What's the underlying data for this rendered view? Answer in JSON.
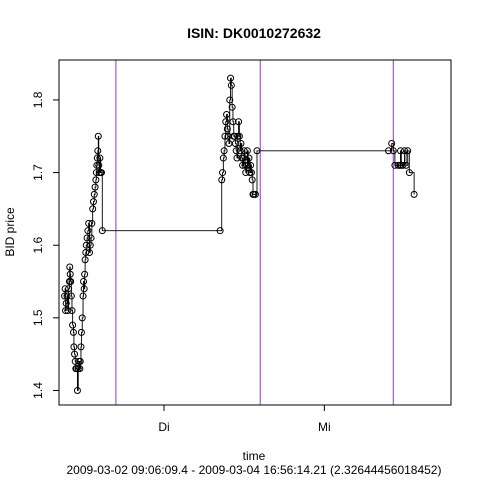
{
  "chart_data": {
    "type": "scatter",
    "title": "ISIN: DK0010272632",
    "xlabel": "time",
    "subtitle": "2009-03-02 09:06:09.4 - 2009-03-04 16:56:14.21 (2.32644456018452)",
    "ylabel": "BID price",
    "x_unit": "days since 2009-03-02 00:00",
    "xlim": [
      0.345,
      2.79
    ],
    "ylim": [
      1.38,
      1.855
    ],
    "x_ticks": [
      {
        "value": 1.0,
        "label": "Di"
      },
      {
        "value": 2.0,
        "label": "Mi"
      }
    ],
    "y_ticks": [
      {
        "value": 1.4,
        "label": "1.4"
      },
      {
        "value": 1.5,
        "label": "1.5"
      },
      {
        "value": 1.6,
        "label": "1.6"
      },
      {
        "value": 1.7,
        "label": "1.7"
      },
      {
        "value": 1.8,
        "label": "1.8"
      }
    ],
    "vertical_lines": [
      {
        "x": 0.7,
        "color": "#9932CC"
      },
      {
        "x": 1.6,
        "color": "#9932CC"
      },
      {
        "x": 2.43,
        "color": "#9932CC"
      }
    ],
    "line_style": "step",
    "grid": false,
    "series": [
      {
        "marker": "open-circle",
        "color": "#000000",
        "points": [
          [
            0.38,
            1.53
          ],
          [
            0.383,
            1.54
          ],
          [
            0.386,
            1.51
          ],
          [
            0.39,
            1.52
          ],
          [
            0.395,
            1.53
          ],
          [
            0.4,
            1.51
          ],
          [
            0.405,
            1.54
          ],
          [
            0.41,
            1.55
          ],
          [
            0.412,
            1.57
          ],
          [
            0.415,
            1.56
          ],
          [
            0.418,
            1.55
          ],
          [
            0.422,
            1.53
          ],
          [
            0.426,
            1.51
          ],
          [
            0.43,
            1.49
          ],
          [
            0.435,
            1.48
          ],
          [
            0.438,
            1.46
          ],
          [
            0.442,
            1.45
          ],
          [
            0.446,
            1.44
          ],
          [
            0.45,
            1.43
          ],
          [
            0.455,
            1.43
          ],
          [
            0.46,
            1.4
          ],
          [
            0.465,
            1.43
          ],
          [
            0.47,
            1.44
          ],
          [
            0.475,
            1.43
          ],
          [
            0.478,
            1.44
          ],
          [
            0.482,
            1.46
          ],
          [
            0.485,
            1.48
          ],
          [
            0.49,
            1.5
          ],
          [
            0.495,
            1.53
          ],
          [
            0.498,
            1.55
          ],
          [
            0.502,
            1.54
          ],
          [
            0.505,
            1.56
          ],
          [
            0.508,
            1.58
          ],
          [
            0.512,
            1.59
          ],
          [
            0.515,
            1.6
          ],
          [
            0.52,
            1.61
          ],
          [
            0.525,
            1.62
          ],
          [
            0.53,
            1.63
          ],
          [
            0.535,
            1.59
          ],
          [
            0.54,
            1.6
          ],
          [
            0.545,
            1.61
          ],
          [
            0.55,
            1.63
          ],
          [
            0.555,
            1.65
          ],
          [
            0.56,
            1.66
          ],
          [
            0.565,
            1.67
          ],
          [
            0.57,
            1.68
          ],
          [
            0.575,
            1.69
          ],
          [
            0.578,
            1.7
          ],
          [
            0.581,
            1.71
          ],
          [
            0.584,
            1.72
          ],
          [
            0.587,
            1.73
          ],
          [
            0.59,
            1.75
          ],
          [
            0.593,
            1.71
          ],
          [
            0.596,
            1.7
          ],
          [
            0.6,
            1.72
          ],
          [
            0.605,
            1.7
          ],
          [
            0.61,
            1.7
          ],
          [
            0.615,
            1.62
          ],
          [
            1.35,
            1.62
          ],
          [
            1.36,
            1.69
          ],
          [
            1.365,
            1.7
          ],
          [
            1.37,
            1.72
          ],
          [
            1.375,
            1.73
          ],
          [
            1.38,
            1.75
          ],
          [
            1.385,
            1.77
          ],
          [
            1.39,
            1.78
          ],
          [
            1.395,
            1.76
          ],
          [
            1.4,
            1.75
          ],
          [
            1.405,
            1.74
          ],
          [
            1.41,
            1.8
          ],
          [
            1.415,
            1.83
          ],
          [
            1.42,
            1.82
          ],
          [
            1.425,
            1.79
          ],
          [
            1.43,
            1.77
          ],
          [
            1.435,
            1.75
          ],
          [
            1.44,
            1.75
          ],
          [
            1.445,
            1.74
          ],
          [
            1.45,
            1.73
          ],
          [
            1.455,
            1.72
          ],
          [
            1.46,
            1.75
          ],
          [
            1.465,
            1.77
          ],
          [
            1.47,
            1.75
          ],
          [
            1.475,
            1.73
          ],
          [
            1.48,
            1.74
          ],
          [
            1.485,
            1.72
          ],
          [
            1.49,
            1.71
          ],
          [
            1.495,
            1.72
          ],
          [
            1.5,
            1.73
          ],
          [
            1.505,
            1.71
          ],
          [
            1.51,
            1.7
          ],
          [
            1.515,
            1.71
          ],
          [
            1.52,
            1.73
          ],
          [
            1.525,
            1.71
          ],
          [
            1.53,
            1.72
          ],
          [
            1.535,
            1.7
          ],
          [
            1.54,
            1.71
          ],
          [
            1.545,
            1.7
          ],
          [
            1.55,
            1.69
          ],
          [
            1.555,
            1.67
          ],
          [
            1.56,
            1.67
          ],
          [
            1.57,
            1.67
          ],
          [
            1.58,
            1.73
          ],
          [
            2.4,
            1.73
          ],
          [
            2.42,
            1.74
          ],
          [
            2.43,
            1.73
          ],
          [
            2.44,
            1.71
          ],
          [
            2.46,
            1.71
          ],
          [
            2.47,
            1.71
          ],
          [
            2.475,
            1.73
          ],
          [
            2.48,
            1.71
          ],
          [
            2.49,
            1.71
          ],
          [
            2.5,
            1.73
          ],
          [
            2.51,
            1.71
          ],
          [
            2.52,
            1.73
          ],
          [
            2.53,
            1.7
          ],
          [
            2.56,
            1.67
          ]
        ]
      }
    ]
  }
}
